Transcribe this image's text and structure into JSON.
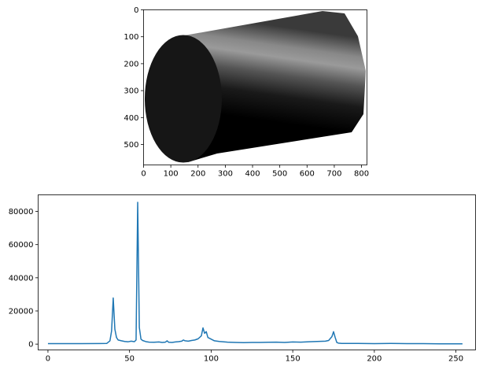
{
  "chart_data": [
    {
      "type": "image",
      "title": "",
      "xlabel": "",
      "ylabel": "",
      "xlim": [
        0,
        820
      ],
      "ylim": [
        0,
        576
      ],
      "y_inverted": true,
      "xticks": [
        "0",
        "100",
        "200",
        "300",
        "400",
        "500",
        "600",
        "700",
        "800"
      ],
      "yticks": [
        "0",
        "100",
        "200",
        "300",
        "400",
        "500"
      ],
      "content": "shaded grayscale cylinder lying on its side",
      "colors": {
        "cap": "#161616",
        "body_dark": "#000000",
        "body_highlight": "#9a9a9a",
        "background": "#ffffff"
      }
    },
    {
      "type": "line",
      "title": "",
      "xlabel": "",
      "ylabel": "",
      "xlim": [
        -6,
        262
      ],
      "ylim": [
        -3500,
        90000
      ],
      "grid": false,
      "xticks": [
        "0",
        "50",
        "100",
        "150",
        "200",
        "250"
      ],
      "yticks": [
        "0",
        "20000",
        "40000",
        "60000",
        "80000"
      ],
      "color": "#1f77b4",
      "x": [
        0,
        20,
        36,
        38,
        39,
        40,
        41,
        42,
        43,
        45,
        47,
        49,
        51,
        53,
        54,
        55,
        56,
        57,
        58,
        60,
        62,
        65,
        68,
        70,
        72,
        73,
        74,
        76,
        78,
        80,
        82,
        83,
        84,
        86,
        88,
        90,
        92,
        94,
        95,
        96,
        97,
        98,
        100,
        102,
        105,
        110,
        115,
        120,
        125,
        130,
        135,
        140,
        145,
        150,
        155,
        160,
        165,
        170,
        172,
        174,
        175,
        176,
        177,
        178,
        180,
        190,
        200,
        210,
        220,
        230,
        240,
        254
      ],
      "values": [
        300,
        300,
        400,
        2000,
        8000,
        27800,
        9000,
        4000,
        2500,
        2000,
        1600,
        1400,
        1800,
        1500,
        2500,
        85500,
        10000,
        3000,
        2200,
        1500,
        1200,
        1100,
        1300,
        1000,
        1200,
        2000,
        1100,
        1000,
        1300,
        1500,
        1800,
        2500,
        2000,
        1800,
        2200,
        2500,
        3200,
        5000,
        9800,
        6500,
        7500,
        4000,
        3000,
        2000,
        1600,
        1200,
        1000,
        900,
        1000,
        1000,
        1100,
        1200,
        1000,
        1300,
        1200,
        1400,
        1600,
        1800,
        2200,
        4500,
        7500,
        4000,
        1000,
        600,
        400,
        400,
        300,
        400,
        300,
        300,
        200,
        200
      ]
    }
  ]
}
